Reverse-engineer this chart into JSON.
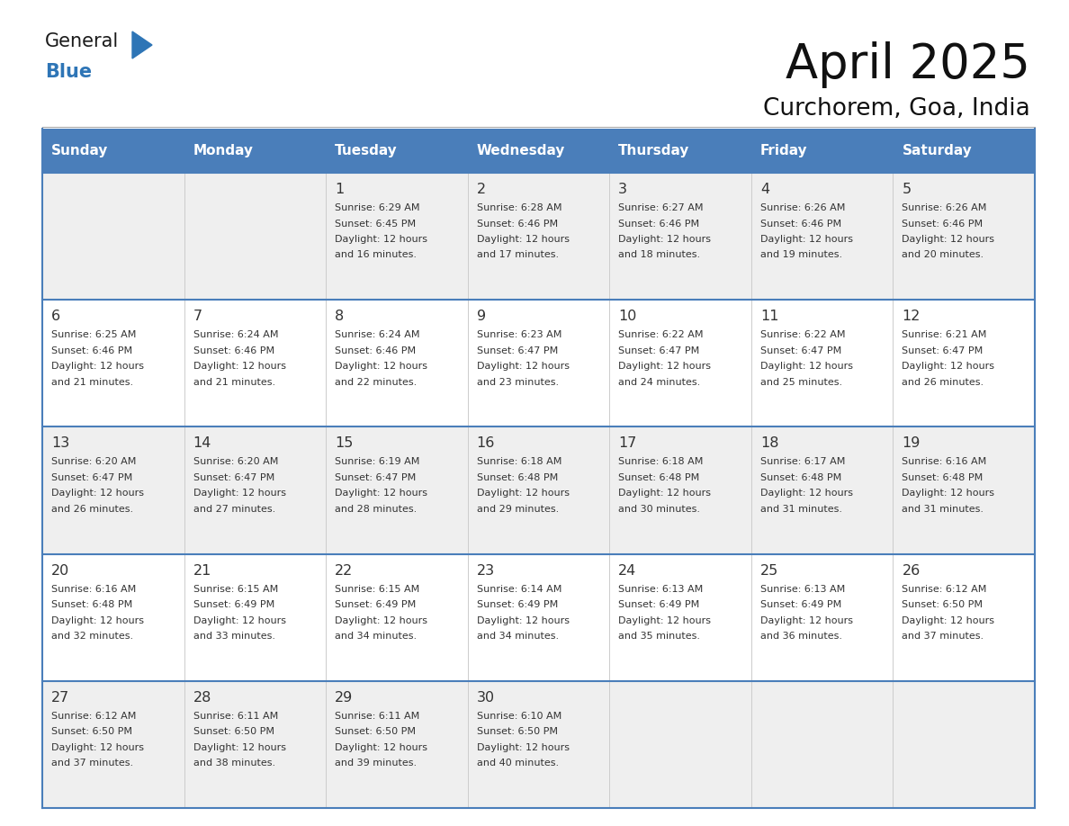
{
  "title": "April 2025",
  "subtitle": "Curchorem, Goa, India",
  "days_of_week": [
    "Sunday",
    "Monday",
    "Tuesday",
    "Wednesday",
    "Thursday",
    "Friday",
    "Saturday"
  ],
  "header_bg": "#4a7eba",
  "header_text": "#FFFFFF",
  "row_bg_light": "#EFEFEF",
  "row_bg_white": "#FFFFFF",
  "border_color_top": "#4a7eba",
  "border_color_row": "#4a7eba",
  "col_divider_color": "#CCCCCC",
  "text_color": "#333333",
  "calendar": [
    [
      {
        "day": "",
        "sunrise": "",
        "sunset": "",
        "daylight_mins": ""
      },
      {
        "day": "",
        "sunrise": "",
        "sunset": "",
        "daylight_mins": ""
      },
      {
        "day": "1",
        "sunrise": "6:29 AM",
        "sunset": "6:45 PM",
        "daylight_mins": "16 minutes."
      },
      {
        "day": "2",
        "sunrise": "6:28 AM",
        "sunset": "6:46 PM",
        "daylight_mins": "17 minutes."
      },
      {
        "day": "3",
        "sunrise": "6:27 AM",
        "sunset": "6:46 PM",
        "daylight_mins": "18 minutes."
      },
      {
        "day": "4",
        "sunrise": "6:26 AM",
        "sunset": "6:46 PM",
        "daylight_mins": "19 minutes."
      },
      {
        "day": "5",
        "sunrise": "6:26 AM",
        "sunset": "6:46 PM",
        "daylight_mins": "20 minutes."
      }
    ],
    [
      {
        "day": "6",
        "sunrise": "6:25 AM",
        "sunset": "6:46 PM",
        "daylight_mins": "21 minutes."
      },
      {
        "day": "7",
        "sunrise": "6:24 AM",
        "sunset": "6:46 PM",
        "daylight_mins": "21 minutes."
      },
      {
        "day": "8",
        "sunrise": "6:24 AM",
        "sunset": "6:46 PM",
        "daylight_mins": "22 minutes."
      },
      {
        "day": "9",
        "sunrise": "6:23 AM",
        "sunset": "6:47 PM",
        "daylight_mins": "23 minutes."
      },
      {
        "day": "10",
        "sunrise": "6:22 AM",
        "sunset": "6:47 PM",
        "daylight_mins": "24 minutes."
      },
      {
        "day": "11",
        "sunrise": "6:22 AM",
        "sunset": "6:47 PM",
        "daylight_mins": "25 minutes."
      },
      {
        "day": "12",
        "sunrise": "6:21 AM",
        "sunset": "6:47 PM",
        "daylight_mins": "26 minutes."
      }
    ],
    [
      {
        "day": "13",
        "sunrise": "6:20 AM",
        "sunset": "6:47 PM",
        "daylight_mins": "26 minutes."
      },
      {
        "day": "14",
        "sunrise": "6:20 AM",
        "sunset": "6:47 PM",
        "daylight_mins": "27 minutes."
      },
      {
        "day": "15",
        "sunrise": "6:19 AM",
        "sunset": "6:47 PM",
        "daylight_mins": "28 minutes."
      },
      {
        "day": "16",
        "sunrise": "6:18 AM",
        "sunset": "6:48 PM",
        "daylight_mins": "29 minutes."
      },
      {
        "day": "17",
        "sunrise": "6:18 AM",
        "sunset": "6:48 PM",
        "daylight_mins": "30 minutes."
      },
      {
        "day": "18",
        "sunrise": "6:17 AM",
        "sunset": "6:48 PM",
        "daylight_mins": "31 minutes."
      },
      {
        "day": "19",
        "sunrise": "6:16 AM",
        "sunset": "6:48 PM",
        "daylight_mins": "31 minutes."
      }
    ],
    [
      {
        "day": "20",
        "sunrise": "6:16 AM",
        "sunset": "6:48 PM",
        "daylight_mins": "32 minutes."
      },
      {
        "day": "21",
        "sunrise": "6:15 AM",
        "sunset": "6:49 PM",
        "daylight_mins": "33 minutes."
      },
      {
        "day": "22",
        "sunrise": "6:15 AM",
        "sunset": "6:49 PM",
        "daylight_mins": "34 minutes."
      },
      {
        "day": "23",
        "sunrise": "6:14 AM",
        "sunset": "6:49 PM",
        "daylight_mins": "34 minutes."
      },
      {
        "day": "24",
        "sunrise": "6:13 AM",
        "sunset": "6:49 PM",
        "daylight_mins": "35 minutes."
      },
      {
        "day": "25",
        "sunrise": "6:13 AM",
        "sunset": "6:49 PM",
        "daylight_mins": "36 minutes."
      },
      {
        "day": "26",
        "sunrise": "6:12 AM",
        "sunset": "6:50 PM",
        "daylight_mins": "37 minutes."
      }
    ],
    [
      {
        "day": "27",
        "sunrise": "6:12 AM",
        "sunset": "6:50 PM",
        "daylight_mins": "37 minutes."
      },
      {
        "day": "28",
        "sunrise": "6:11 AM",
        "sunset": "6:50 PM",
        "daylight_mins": "38 minutes."
      },
      {
        "day": "29",
        "sunrise": "6:11 AM",
        "sunset": "6:50 PM",
        "daylight_mins": "39 minutes."
      },
      {
        "day": "30",
        "sunrise": "6:10 AM",
        "sunset": "6:50 PM",
        "daylight_mins": "40 minutes."
      },
      {
        "day": "",
        "sunrise": "",
        "sunset": "",
        "daylight_mins": ""
      },
      {
        "day": "",
        "sunrise": "",
        "sunset": "",
        "daylight_mins": ""
      },
      {
        "day": "",
        "sunrise": "",
        "sunset": "",
        "daylight_mins": ""
      }
    ]
  ],
  "logo_general_color": "#1a1a1a",
  "logo_blue_color": "#2E75B6",
  "logo_triangle_color": "#2E75B6"
}
